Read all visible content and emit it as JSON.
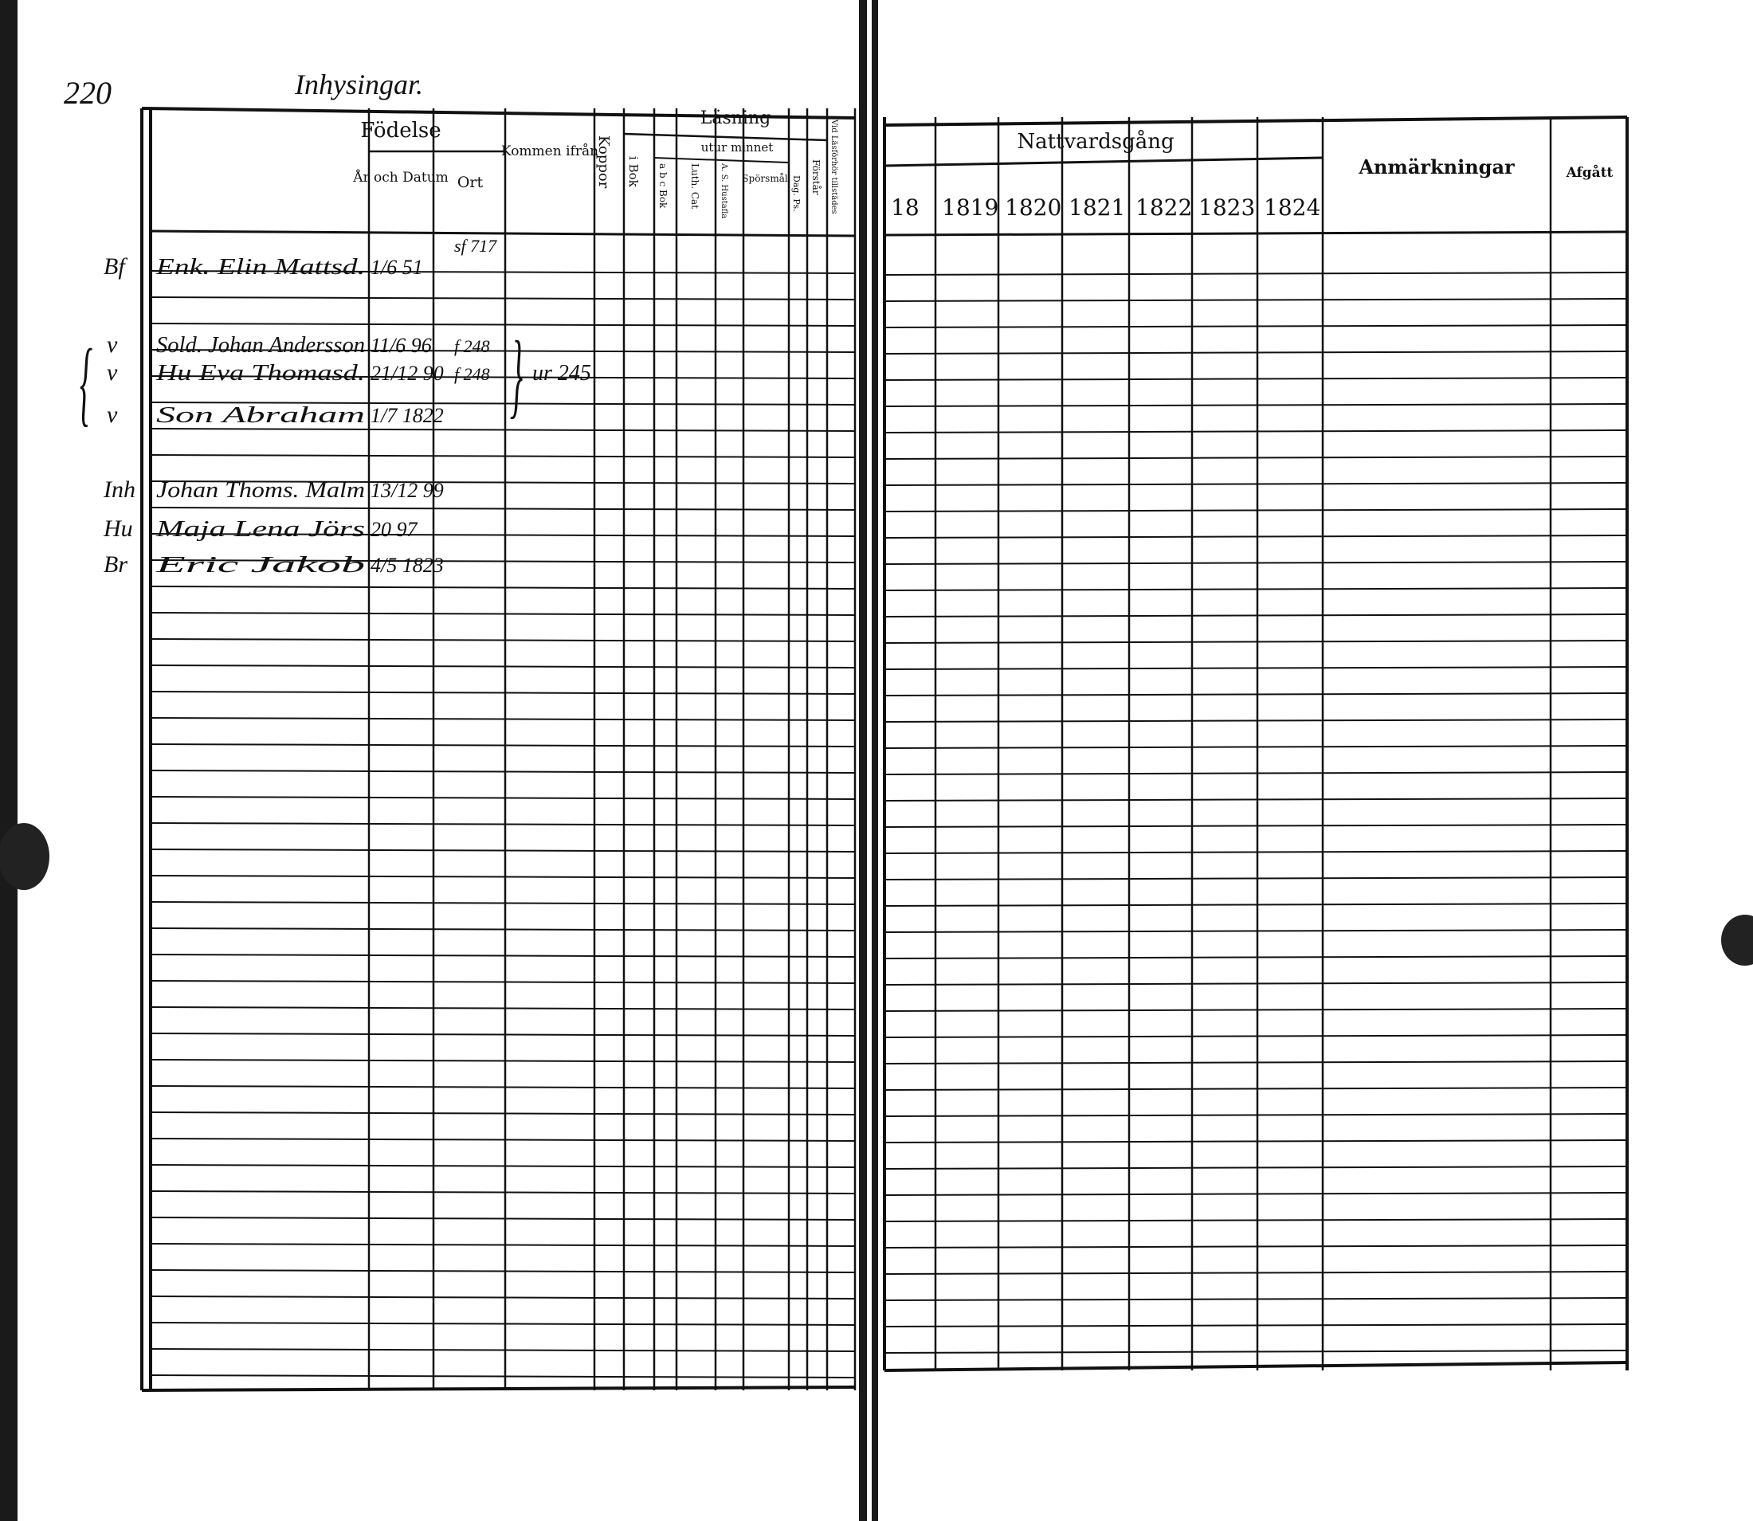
{
  "left_page": {
    "page_number": "220",
    "section_title": "Inhysingar.",
    "headers": {
      "name_col": "",
      "fodelse": "Födelse",
      "ar_och_datum": "År och Datum",
      "ort": "Ort",
      "kommen_ifran": "Kommen ifrån",
      "koppor": "Koppor",
      "lasning": "Läsning",
      "utur_minnet": "utur minnet",
      "i_bok": "i Bok",
      "abc_bok": "a b c Bok",
      "luth_cat": "Luth. Cat",
      "hustafla": "A. S. Hustafla",
      "sporsmal": "Spörsmål",
      "dag_ps": "Dag. Ps.",
      "forstar": "Förstår",
      "vid_lasforhor": "Vid Läsförhör tillstädes"
    },
    "entries": [
      {
        "prefix": "Bf",
        "name": "Enk. Elin Mattsd.",
        "date": "1/6 51",
        "place": "sf 717",
        "from": ""
      },
      {
        "prefix": "v",
        "name": "Sold. Johan Andersson",
        "date": "11/6 96",
        "place": "f 248",
        "from": ""
      },
      {
        "prefix": "v",
        "name": "Hu Eva Thomasd.",
        "date": "21/12 90",
        "place": "f 248",
        "from": "ur 245"
      },
      {
        "prefix": "v",
        "name": "Son Abraham",
        "date": "1/7 1822",
        "place": "",
        "from": ""
      },
      {
        "prefix": "Inh",
        "name": "Johan Thoms. Malm",
        "date": "13/12 99",
        "place": "",
        "from": ""
      },
      {
        "prefix": "Hu",
        "name": "Maja Lena Jörs",
        "date": "20 97",
        "place": "",
        "from": ""
      },
      {
        "prefix": "Br",
        "name": "Eric Jakob",
        "date": "4/5 1823",
        "place": "",
        "from": ""
      }
    ]
  },
  "right_page": {
    "headers": {
      "nattvardsgang": "Nattvardsgång",
      "years": [
        "18",
        "1819",
        "1820",
        "1821",
        "1822",
        "1823",
        "1824"
      ],
      "anmarkningar": "Anmärkningar",
      "afgatt": "Afgått"
    }
  },
  "colors": {
    "paper": "#ffffff",
    "ink": "#111111",
    "binding": "#1a1a1a"
  }
}
